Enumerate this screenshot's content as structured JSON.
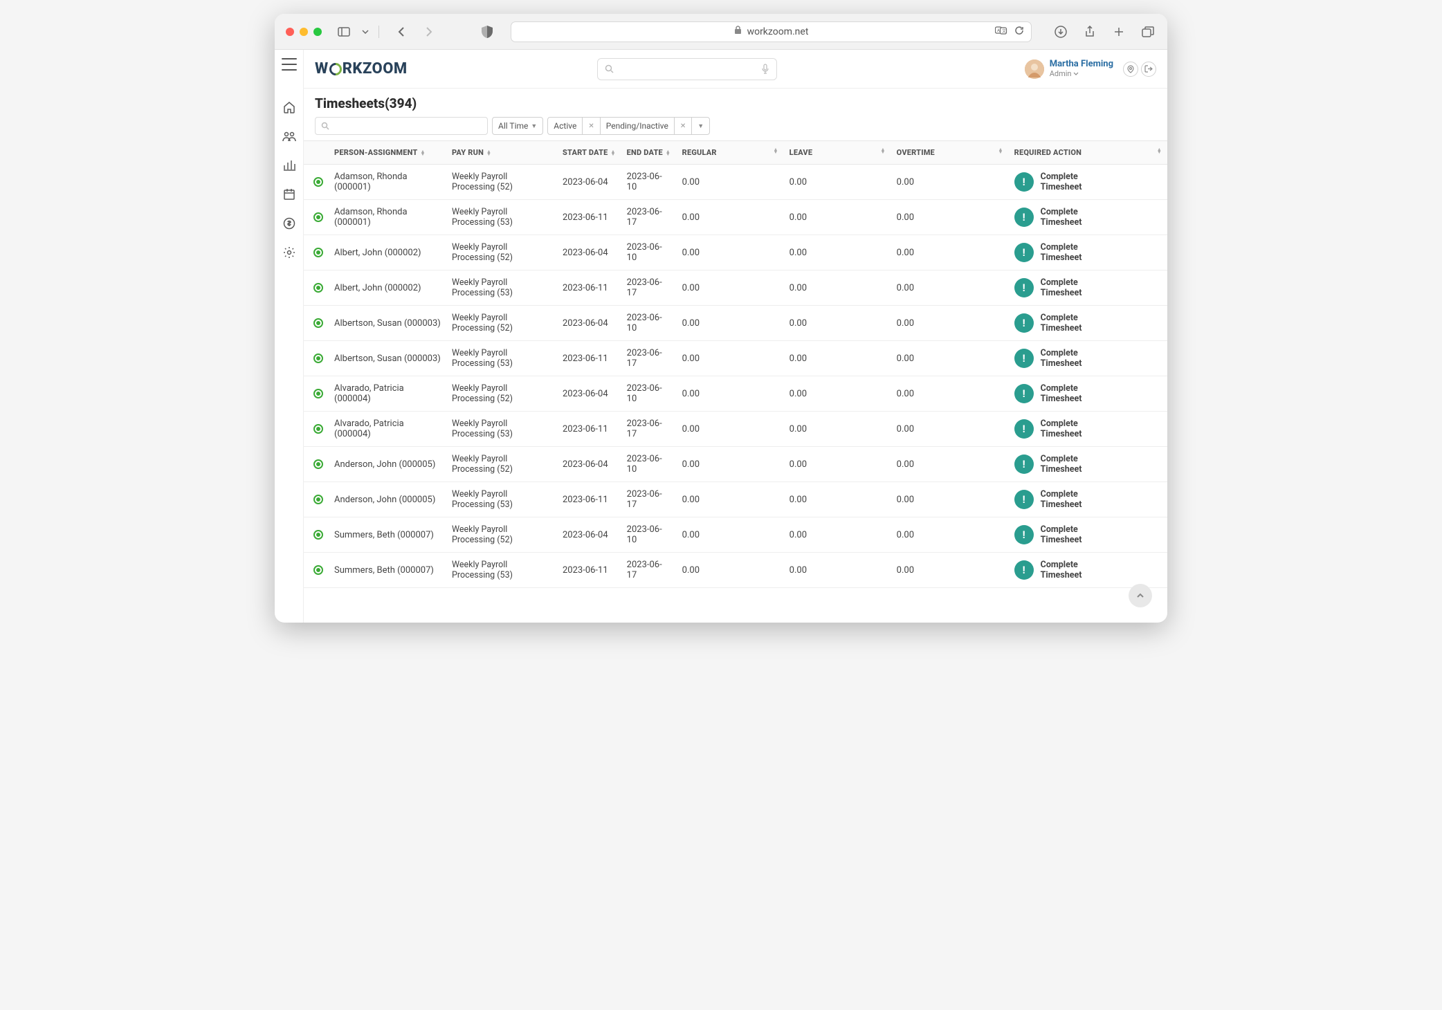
{
  "browser": {
    "url": "workzoom.net",
    "traffic_colors": {
      "red": "#ff5f57",
      "yellow": "#febc2e",
      "green": "#28c840"
    }
  },
  "app": {
    "logo_prefix": "W",
    "logo_suffix": "RKZOOM",
    "user": {
      "name": "Martha Fleming",
      "role": "Admin"
    }
  },
  "page": {
    "title": "Timesheets(394)",
    "filter_time": "All Time",
    "filter_chips": [
      "Active",
      "Pending/Inactive"
    ]
  },
  "table": {
    "columns": {
      "person": "PERSON-ASSIGNMENT",
      "payrun": "PAY RUN",
      "start": "START DATE",
      "end": "END DATE",
      "regular": "REGULAR",
      "leave": "LEAVE",
      "overtime": "OVERTIME",
      "action": "REQUIRED ACTION"
    },
    "action_label": "Complete Timesheet",
    "action_icon": "!",
    "action_badge_color": "#2a9d8f",
    "status_dot_color": "#3aaa35",
    "rows": [
      {
        "person": "Adamson, Rhonda (000001)",
        "payrun": "Weekly Payroll Processing (52)",
        "start": "2023-06-04",
        "end": "2023-06-10",
        "regular": "0.00",
        "leave": "0.00",
        "overtime": "0.00"
      },
      {
        "person": "Adamson, Rhonda (000001)",
        "payrun": "Weekly Payroll Processing (53)",
        "start": "2023-06-11",
        "end": "2023-06-17",
        "regular": "0.00",
        "leave": "0.00",
        "overtime": "0.00"
      },
      {
        "person": "Albert, John (000002)",
        "payrun": "Weekly Payroll Processing (52)",
        "start": "2023-06-04",
        "end": "2023-06-10",
        "regular": "0.00",
        "leave": "0.00",
        "overtime": "0.00"
      },
      {
        "person": "Albert, John (000002)",
        "payrun": "Weekly Payroll Processing (53)",
        "start": "2023-06-11",
        "end": "2023-06-17",
        "regular": "0.00",
        "leave": "0.00",
        "overtime": "0.00"
      },
      {
        "person": "Albertson, Susan (000003)",
        "payrun": "Weekly Payroll Processing (52)",
        "start": "2023-06-04",
        "end": "2023-06-10",
        "regular": "0.00",
        "leave": "0.00",
        "overtime": "0.00"
      },
      {
        "person": "Albertson, Susan (000003)",
        "payrun": "Weekly Payroll Processing (53)",
        "start": "2023-06-11",
        "end": "2023-06-17",
        "regular": "0.00",
        "leave": "0.00",
        "overtime": "0.00"
      },
      {
        "person": "Alvarado, Patricia (000004)",
        "payrun": "Weekly Payroll Processing (52)",
        "start": "2023-06-04",
        "end": "2023-06-10",
        "regular": "0.00",
        "leave": "0.00",
        "overtime": "0.00"
      },
      {
        "person": "Alvarado, Patricia (000004)",
        "payrun": "Weekly Payroll Processing (53)",
        "start": "2023-06-11",
        "end": "2023-06-17",
        "regular": "0.00",
        "leave": "0.00",
        "overtime": "0.00"
      },
      {
        "person": "Anderson, John (000005)",
        "payrun": "Weekly Payroll Processing (52)",
        "start": "2023-06-04",
        "end": "2023-06-10",
        "regular": "0.00",
        "leave": "0.00",
        "overtime": "0.00"
      },
      {
        "person": "Anderson, John (000005)",
        "payrun": "Weekly Payroll Processing (53)",
        "start": "2023-06-11",
        "end": "2023-06-17",
        "regular": "0.00",
        "leave": "0.00",
        "overtime": "0.00"
      },
      {
        "person": "Summers, Beth (000007)",
        "payrun": "Weekly Payroll Processing (52)",
        "start": "2023-06-04",
        "end": "2023-06-10",
        "regular": "0.00",
        "leave": "0.00",
        "overtime": "0.00"
      },
      {
        "person": "Summers, Beth (000007)",
        "payrun": "Weekly Payroll Processing (53)",
        "start": "2023-06-11",
        "end": "2023-06-17",
        "regular": "0.00",
        "leave": "0.00",
        "overtime": "0.00"
      }
    ]
  },
  "colors": {
    "header_text": "#555",
    "text": "#444",
    "border": "#e7e7e7",
    "link": "#2b6ea3"
  }
}
